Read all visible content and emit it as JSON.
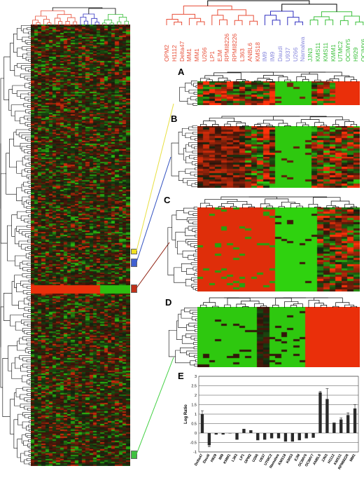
{
  "figure": {
    "panel_labels": [
      "A",
      "B",
      "C",
      "D",
      "E"
    ]
  },
  "cell_lines": [
    {
      "name": "OPM2",
      "group": "red"
    },
    {
      "name": "H1112",
      "group": "red"
    },
    {
      "name": "Delta47",
      "group": "red"
    },
    {
      "name": "MM1",
      "group": "red"
    },
    {
      "name": "MM1",
      "group": "red"
    },
    {
      "name": "U266",
      "group": "red"
    },
    {
      "name": "LP1",
      "group": "red"
    },
    {
      "name": "EJM",
      "group": "red"
    },
    {
      "name": "RPMI8226",
      "group": "red"
    },
    {
      "name": "RPMI8226",
      "group": "red"
    },
    {
      "name": "L363",
      "group": "red"
    },
    {
      "name": "ANBL6",
      "group": "red"
    },
    {
      "name": "KMS18",
      "group": "red"
    },
    {
      "name": "IM9",
      "group": "blue"
    },
    {
      "name": "IM9",
      "group": "blue"
    },
    {
      "name": "Daudi",
      "group": "blue"
    },
    {
      "name": "U937",
      "group": "blue"
    },
    {
      "name": "U266",
      "group": "blue"
    },
    {
      "name": "Namalwa",
      "group": "blue"
    },
    {
      "name": "JJN3",
      "group": "green"
    },
    {
      "name": "KMS11",
      "group": "green"
    },
    {
      "name": "KMS11",
      "group": "green"
    },
    {
      "name": "KMM1",
      "group": "green"
    },
    {
      "name": "UTMC2",
      "group": "green"
    },
    {
      "name": "OCIMY5",
      "group": "green"
    },
    {
      "name": "H929",
      "group": "green"
    },
    {
      "name": "OCIMY6",
      "group": "green"
    }
  ],
  "colors": {
    "red_cluster": "#e8503a",
    "blue_cluster": "#3030c0",
    "green_cluster": "#3cc03c",
    "heat_red": "#ff3010",
    "heat_green": "#40e020",
    "marker_yellow": "#f0e020",
    "marker_blue": "#4060d0",
    "marker_red": "#c03018",
    "marker_green": "#40c040",
    "line_yellow": "#e8e040",
    "line_blue": "#3050c0",
    "line_red": "#902010",
    "line_green": "#40d040"
  },
  "chart_data": {
    "type": "bar",
    "title": "",
    "ylabel": "Log Ratio",
    "ylim": [
      -1,
      3
    ],
    "yticks": [
      "-1",
      "-0.5",
      "0",
      "0.5",
      "1",
      "1.5",
      "2",
      "2.5",
      "3"
    ],
    "grid": true,
    "categories": [
      "Delta47",
      "Daudi",
      "H929",
      "IM9",
      "KMM1",
      "L363",
      "LP1",
      "OPM2",
      "U266",
      "U937",
      "UTMC2",
      "Namalwa",
      "KMS18",
      "KMS3",
      "EJM",
      "OCIMY6",
      "OCIMY7",
      "ANBL6",
      "JJN3",
      "H1112",
      "KMS11",
      "RPMI8226",
      "MM1"
    ],
    "values": [
      1.0,
      -0.65,
      -0.08,
      -0.08,
      -0.02,
      -0.35,
      0.22,
      0.15,
      -0.38,
      -0.35,
      -0.28,
      -0.28,
      -0.45,
      -0.45,
      -0.38,
      -0.28,
      -0.25,
      2.15,
      1.8,
      0.55,
      0.72,
      0.95,
      1.3
    ],
    "errors": [
      0.18,
      0.08,
      0.0,
      0.0,
      0.0,
      0.0,
      0.0,
      0.0,
      0.0,
      0.0,
      0.0,
      0.0,
      0.0,
      0.0,
      0.0,
      0.0,
      0.0,
      0.05,
      0.55,
      0.0,
      0.08,
      0.12,
      0.2
    ]
  }
}
